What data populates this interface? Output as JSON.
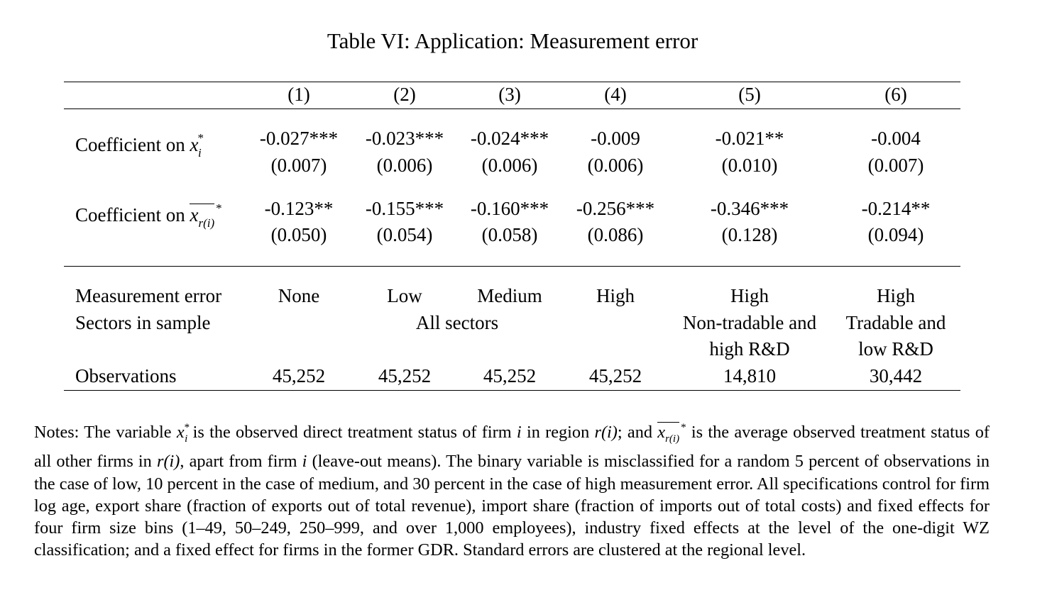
{
  "title": "Table VI: Application: Measurement error",
  "headers": [
    "(1)",
    "(2)",
    "(3)",
    "(4)",
    "(5)",
    "(6)"
  ],
  "rows": {
    "coef1": {
      "label_prefix": "Coefficient on ",
      "label_var": "x",
      "label_sub": "i",
      "label_sup": "*",
      "values": [
        "-0.027***",
        "-0.023***",
        "-0.024***",
        "-0.009",
        "-0.021**",
        "-0.004"
      ],
      "se": [
        "(0.007)",
        "(0.006)",
        "(0.006)",
        "(0.006)",
        "(0.010)",
        "(0.007)"
      ]
    },
    "coef2": {
      "label_prefix": "Coefficient on ",
      "label_var": "x",
      "label_sub": "r(i)",
      "label_sup": "*",
      "values": [
        "-0.123**",
        "-0.155***",
        "-0.160***",
        "-0.256***",
        "-0.346***",
        "-0.214**"
      ],
      "se": [
        "(0.050)",
        "(0.054)",
        "(0.058)",
        "(0.086)",
        "(0.128)",
        "(0.094)"
      ]
    }
  },
  "measurement_error": {
    "label": "Measurement error",
    "values": [
      "None",
      "Low",
      "Medium",
      "High",
      "High",
      "High"
    ]
  },
  "sectors": {
    "label": "Sectors in sample",
    "all": "All sectors",
    "col5_line1": "Non-tradable and",
    "col5_line2": "high R&D",
    "col6_line1": "Tradable and",
    "col6_line2": "low R&D"
  },
  "observations": {
    "label": "Observations",
    "values": [
      "45,252",
      "45,252",
      "45,252",
      "45,252",
      "14,810",
      "30,442"
    ]
  },
  "notes": {
    "t1": "Notes: The variable ",
    "t2": " is the observed direct treatment status of firm ",
    "t3": " in region ",
    "t4": "; and ",
    "t5": " is the average observed treatment status of all other firms in ",
    "t6": ", apart from firm ",
    "t7": " (leave-out means). The binary variable is misclassified for a random 5 percent of observations in the case of low, 10 percent in the case of medium, and 30 percent in the case of high measurement error. All specifications control for firm log age, export share (fraction of exports out of total revenue), import share (fraction of imports out of total costs) and fixed effects for four firm size bins (1–49, 50–249, 250–999, and over 1,000 employees), industry fixed effects at the level of the one-digit WZ classification; and a fixed effect for firms in the former GDR. Standard errors are clustered at the regional level.",
    "var_x": "x",
    "sub_i": "i",
    "sup_star": "*",
    "firm_i": "i",
    "region_ri": "r(i)",
    "sub_ri": "r(i)"
  }
}
